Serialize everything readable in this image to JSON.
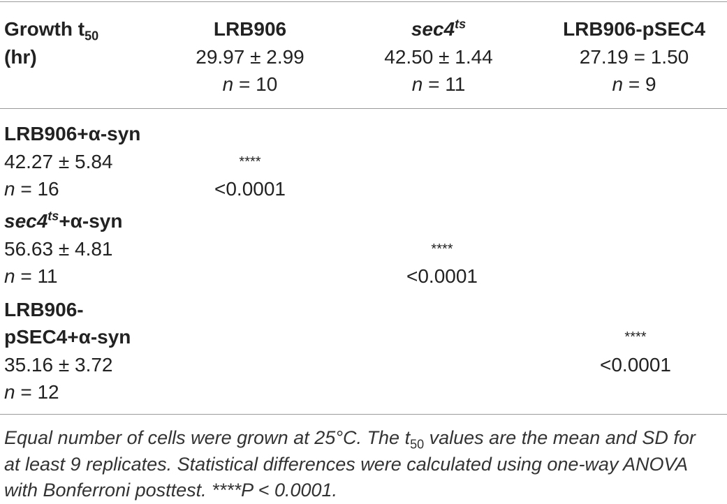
{
  "header": {
    "col0_line1": "Growth t",
    "col0_sub": "50",
    "col0_line2": "(hr)",
    "columns": [
      {
        "name": "LRB906",
        "mean_sd": "29.97 ± 2.99",
        "n_label": "n",
        "n_value": " = 10"
      },
      {
        "name": "sec4",
        "name_sup": "ts",
        "mean_sd": "42.50 ± 1.44",
        "n_label": "n",
        "n_value": " = 11"
      },
      {
        "name": "LRB906-pSEC4",
        "mean_sd": "27.19 = 1.50",
        "n_label": "n",
        "n_value": " = 9"
      }
    ]
  },
  "rows": [
    {
      "name": "LRB906+α-syn",
      "mean_sd": "42.27 ± 5.84",
      "n_label": "n",
      "n_value": " = 16",
      "stars": "****",
      "p": "<0.0001"
    },
    {
      "name_italic": "sec4",
      "name_sup": "ts",
      "name_suffix": "+α-syn",
      "mean_sd": "56.63 ± 4.81",
      "n_label": "n",
      "n_value": " = 11",
      "stars": "****",
      "p": "<0.0001"
    },
    {
      "name_line1": "LRB906-",
      "name_line2": "pSEC4+α-syn",
      "mean_sd": "35.16 ± 3.72",
      "n_label": "n",
      "n_value": " = 12",
      "stars": "****",
      "p": "<0.0001"
    }
  ],
  "caption": {
    "line1_a": "Equal number of cells were grown at 25°C. The t",
    "line1_sub": "50",
    "line1_b": " values are the mean and SD for",
    "line2": "at least 9 replicates. Statistical differences were calculated using one-way ANOVA",
    "line3": "with Bonferroni posttest. ****P < 0.0001."
  }
}
